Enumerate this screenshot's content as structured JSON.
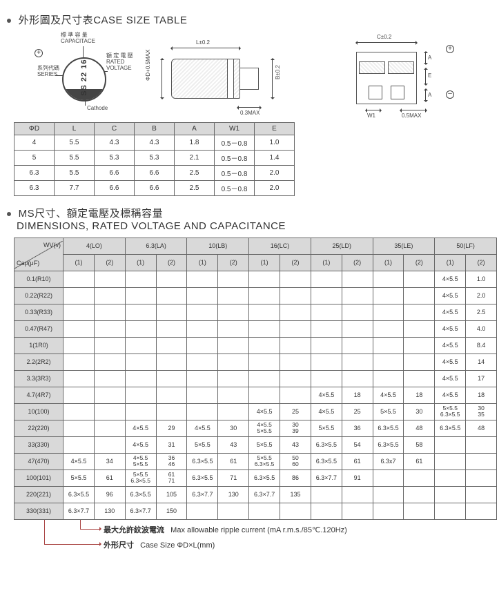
{
  "titles": {
    "case_size_cn": "外形圖及尺寸表",
    "case_size_en": "CASE SIZE TABLE",
    "dims_cn": "MS尺寸、額定電壓及標稱容量",
    "dims_en": "DIMENSIONS, RATED VOLTAGE AND CAPACITANCE"
  },
  "capacitor_diagram": {
    "capacitance_cn": "標 準 容 量",
    "capacitance_en": "CAPACITACE",
    "series_cn": "系列代碼",
    "series_en": "SERIES",
    "rated_cn": "額 定 電 壓",
    "rated_en": "RATED",
    "voltage_en": "VOLTAGE",
    "cathode": "Cathode",
    "body_text": "SS 22 16V"
  },
  "side_drawing": {
    "L": "L±0.2",
    "phiD": "ΦD+0.5MAX",
    "B": "B±0.2",
    "below": "0.3MAX"
  },
  "foot_drawing": {
    "C": "C±0.2",
    "A": "A",
    "E": "E",
    "W1": "W1",
    "half": "0.5MAX"
  },
  "size_table": {
    "headers": [
      "ΦD",
      "L",
      "C",
      "B",
      "A",
      "W1",
      "E"
    ],
    "rows": [
      [
        "4",
        "5.5",
        "4.3",
        "4.3",
        "1.8",
        "0.5－0.8",
        "1.0"
      ],
      [
        "5",
        "5.5",
        "5.3",
        "5.3",
        "2.1",
        "0.5－0.8",
        "1.4"
      ],
      [
        "6.3",
        "5.5",
        "6.6",
        "6.6",
        "2.5",
        "0.5－0.8",
        "2.0"
      ],
      [
        "6.3",
        "7.7",
        "6.6",
        "6.6",
        "2.5",
        "0.5－0.8",
        "2.0"
      ]
    ]
  },
  "main_table": {
    "wv_label": "WV(v)",
    "cap_label": "Cap(μF)",
    "top_headers": [
      "4(LO)",
      "6.3(LA)",
      "10(LB)",
      "16(LC)",
      "25(LD)",
      "35(LE)",
      "50(LF)"
    ],
    "sub_headers": [
      "(1)",
      "(2)"
    ],
    "row_labels": [
      "0.1(R10)",
      "0.22(R22)",
      "0.33(R33)",
      "0.47(R47)",
      "1(1R0)",
      "2.2(2R2)",
      "3.3(3R3)",
      "4.7(4R7)",
      "10(100)",
      "22(220)",
      "33(330)",
      "47(470)",
      "100(101)",
      "220(221)",
      "330(331)"
    ],
    "data": [
      [
        null,
        null,
        null,
        null,
        null,
        null,
        null,
        null,
        null,
        null,
        null,
        null,
        "4×5.5",
        "1.0"
      ],
      [
        null,
        null,
        null,
        null,
        null,
        null,
        null,
        null,
        null,
        null,
        null,
        null,
        "4×5.5",
        "2.0"
      ],
      [
        null,
        null,
        null,
        null,
        null,
        null,
        null,
        null,
        null,
        null,
        null,
        null,
        "4×5.5",
        "2.5"
      ],
      [
        null,
        null,
        null,
        null,
        null,
        null,
        null,
        null,
        null,
        null,
        null,
        null,
        "4×5.5",
        "4.0"
      ],
      [
        null,
        null,
        null,
        null,
        null,
        null,
        null,
        null,
        null,
        null,
        null,
        null,
        "4×5.5",
        "8.4"
      ],
      [
        null,
        null,
        null,
        null,
        null,
        null,
        null,
        null,
        null,
        null,
        null,
        null,
        "4×5.5",
        "14"
      ],
      [
        null,
        null,
        null,
        null,
        null,
        null,
        null,
        null,
        null,
        null,
        null,
        null,
        "4×5.5",
        "17"
      ],
      [
        null,
        null,
        null,
        null,
        null,
        null,
        null,
        null,
        "4×5.5",
        "18",
        "4×5.5",
        "18",
        "4×5.5",
        "18"
      ],
      [
        null,
        null,
        null,
        null,
        null,
        null,
        "4×5.5",
        "25",
        "4×5.5",
        "25",
        "5×5.5",
        "30",
        "5×5.5\n6.3×5.5",
        "30\n35"
      ],
      [
        null,
        null,
        "4×5.5",
        "29",
        "4×5.5",
        "30",
        "4×5.5\n5×5.5",
        "30\n39",
        "5×5.5",
        "36",
        "6.3×5.5",
        "48",
        "6.3×5.5",
        "48"
      ],
      [
        null,
        null,
        "4×5.5",
        "31",
        "5×5.5",
        "43",
        "5×5.5",
        "43",
        "6.3×5.5",
        "54",
        "6.3×5.5",
        "58",
        null,
        null
      ],
      [
        "4×5.5",
        "34",
        "4×5.5\n5×5.5",
        "36\n46",
        "6.3×5.5",
        "61",
        "5×5.5\n6.3×5.5",
        "50\n60",
        "6.3×5.5",
        "61",
        "6.3x7",
        "61",
        null,
        null
      ],
      [
        "5×5.5",
        "61",
        "5×5.5\n6.3×5.5",
        "61\n71",
        "6.3×5.5",
        "71",
        "6.3×5.5",
        "86",
        "6.3×7.7",
        "91",
        null,
        null,
        null,
        null
      ],
      [
        "6.3×5.5",
        "96",
        "6.3×5.5",
        "105",
        "6.3×7.7",
        "130",
        "6.3×7.7",
        "135",
        null,
        null,
        null,
        null,
        null,
        null
      ],
      [
        "6.3×7.7",
        "130",
        "6.3×7.7",
        "150",
        null,
        null,
        null,
        null,
        null,
        null,
        null,
        null,
        null,
        null
      ]
    ]
  },
  "footer": {
    "ripple_cn": "最大允許紋波電流",
    "ripple_en": "Max allowable ripple current (mA  r.m.s./85℃.120Hz)",
    "case_cn": "外形尺寸",
    "case_en": "Case Size ΦD×L(mm)"
  },
  "colors": {
    "header_bg": "#d9d9d9",
    "border": "#666666",
    "text": "#333333",
    "arrow": "#a94442"
  }
}
